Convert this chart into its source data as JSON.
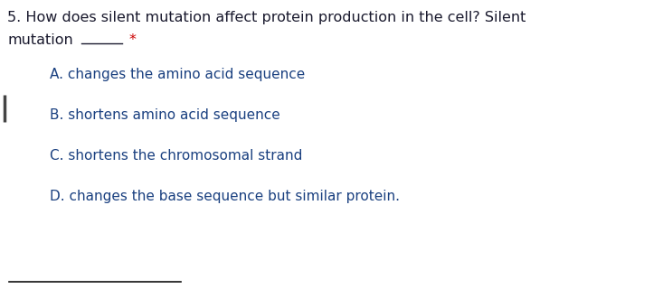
{
  "background_color": "#ffffff",
  "question_line1": "5. How does silent mutation affect protein production in the cell? Silent",
  "question_line2_main": "mutation",
  "blank_text": "_____",
  "asterisk_text": "*",
  "options": [
    "A. changes the amino acid sequence",
    "B. shortens amino acid sequence",
    "C. shortens the chromosomal strand",
    "D. changes the base sequence but similar protein."
  ],
  "question_color": "#1a1a2e",
  "option_color": "#1a4080",
  "asterisk_color": "#cc0000",
  "question_fontsize": 11.5,
  "option_fontsize": 11.0,
  "left_bar_color": "#444444",
  "bottom_line_color": "#111111"
}
